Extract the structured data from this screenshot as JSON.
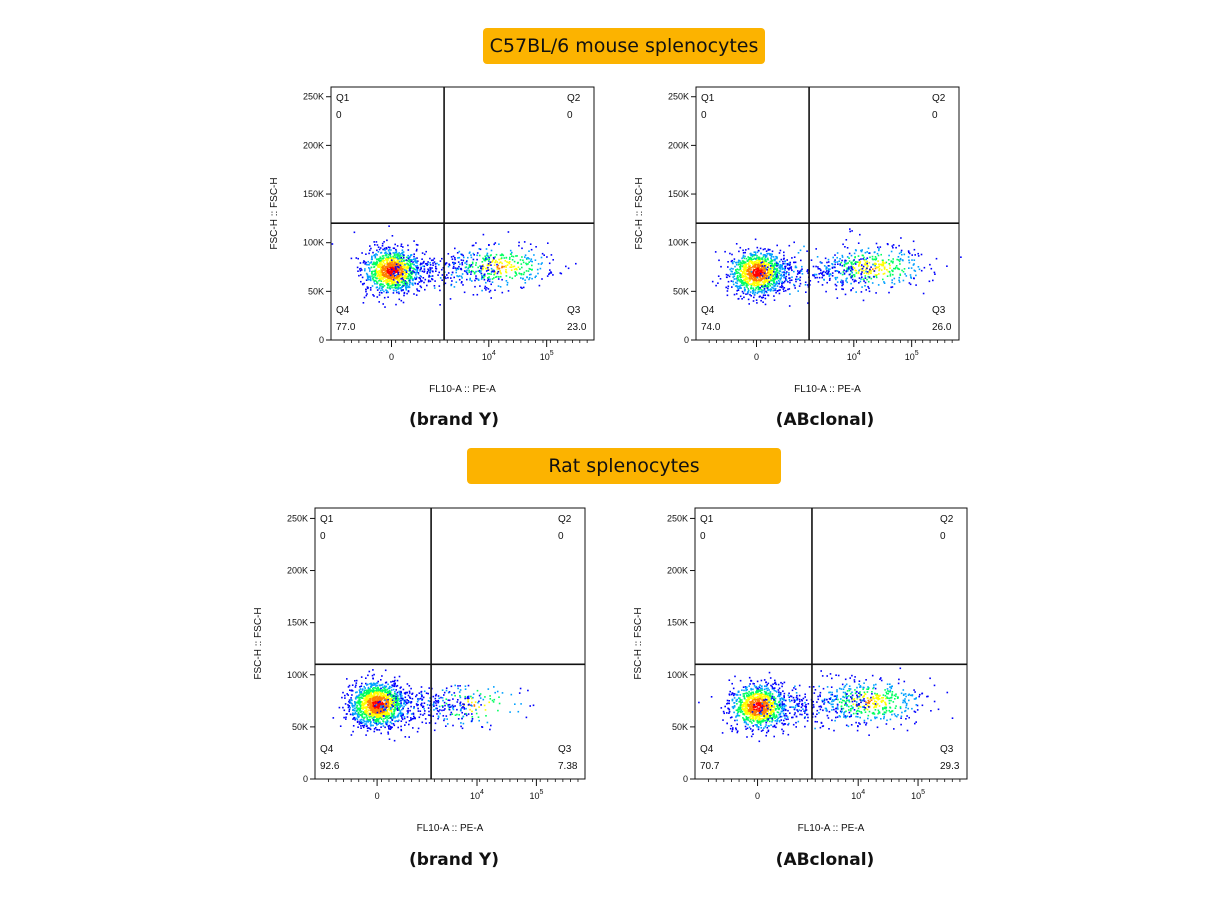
{
  "banners": {
    "mouse": "C57BL/6 mouse splenocytes",
    "rat": "Rat splenocytes"
  },
  "colors": {
    "banner": "#fcb300",
    "axis": "#111111",
    "density_scale": [
      "#0000ff",
      "#00a0ff",
      "#00ff60",
      "#ffff00",
      "#ff8000",
      "#ff0000"
    ]
  },
  "chart_data": [
    {
      "type": "scatter",
      "panel": "mouse-brand-y",
      "caption": "(brand Y)",
      "xlabel": "FL10-A :: PE-A",
      "ylabel": "FSC-H :: FSC-H",
      "y_ticks": [
        "0",
        "50K",
        "100K",
        "150K",
        "200K",
        "250K"
      ],
      "x_ticks": [
        "0",
        "10^4",
        "10^5"
      ],
      "ylim": [
        0,
        260000
      ],
      "gate": {
        "x_threshold_label": "between 0 and 10^4",
        "y_threshold": 120000
      },
      "quadrants": {
        "Q1": "0",
        "Q2": "0",
        "Q3": "23.0",
        "Q4": "77.0"
      },
      "populations": [
        {
          "name": "negative",
          "fraction": 0.77,
          "x_center": 0,
          "y_center": 72000
        },
        {
          "name": "positive",
          "fraction": 0.23,
          "x_center": 15000,
          "y_center": 76000
        }
      ]
    },
    {
      "type": "scatter",
      "panel": "mouse-abclonal",
      "caption": "(ABclonal)",
      "xlabel": "FL10-A :: PE-A",
      "ylabel": "FSC-H :: FSC-H",
      "y_ticks": [
        "0",
        "50K",
        "100K",
        "150K",
        "200K",
        "250K"
      ],
      "x_ticks": [
        "0",
        "10^4",
        "10^5"
      ],
      "ylim": [
        0,
        260000
      ],
      "gate": {
        "x_threshold_label": "between 0 and 10^4",
        "y_threshold": 120000
      },
      "quadrants": {
        "Q1": "0",
        "Q2": "0",
        "Q3": "26.0",
        "Q4": "74.0"
      },
      "populations": [
        {
          "name": "negative",
          "fraction": 0.74,
          "x_center": 0,
          "y_center": 70000
        },
        {
          "name": "positive",
          "fraction": 0.26,
          "x_center": 20000,
          "y_center": 75000
        }
      ]
    },
    {
      "type": "scatter",
      "panel": "rat-brand-y",
      "caption": "(brand Y)",
      "xlabel": "FL10-A :: PE-A",
      "ylabel": "FSC-H :: FSC-H",
      "y_ticks": [
        "0",
        "50K",
        "100K",
        "150K",
        "200K",
        "250K"
      ],
      "x_ticks": [
        "0",
        "10^4",
        "10^5"
      ],
      "ylim": [
        0,
        260000
      ],
      "gate": {
        "x_threshold_label": "between 0 and 10^4",
        "y_threshold": 110000
      },
      "quadrants": {
        "Q1": "0",
        "Q2": "0",
        "Q3": "7.38",
        "Q4": "92.6"
      },
      "populations": [
        {
          "name": "negative",
          "fraction": 0.926,
          "x_center": 0,
          "y_center": 72000
        },
        {
          "name": "positive",
          "fraction": 0.074,
          "x_center": 8000,
          "y_center": 72000
        }
      ]
    },
    {
      "type": "scatter",
      "panel": "rat-abclonal",
      "caption": "(ABclonal)",
      "xlabel": "FL10-A :: PE-A",
      "ylabel": "FSC-H :: FSC-H",
      "y_ticks": [
        "0",
        "50K",
        "100K",
        "150K",
        "200K",
        "250K"
      ],
      "x_ticks": [
        "0",
        "10^4",
        "10^5"
      ],
      "ylim": [
        0,
        260000
      ],
      "gate": {
        "x_threshold_label": "between 0 and 10^4",
        "y_threshold": 110000
      },
      "quadrants": {
        "Q1": "0",
        "Q2": "0",
        "Q3": "29.3",
        "Q4": "70.7"
      },
      "populations": [
        {
          "name": "negative",
          "fraction": 0.707,
          "x_center": 0,
          "y_center": 70000
        },
        {
          "name": "positive",
          "fraction": 0.293,
          "x_center": 15000,
          "y_center": 75000
        }
      ]
    }
  ]
}
